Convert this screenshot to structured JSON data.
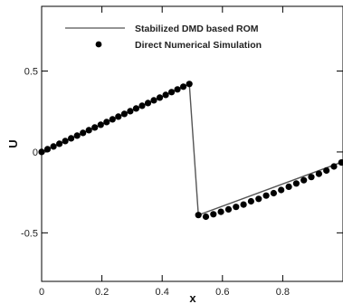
{
  "chart_data": {
    "type": "line",
    "xlabel": "x",
    "ylabel": "U",
    "xlim": [
      0,
      1.0
    ],
    "ylim": [
      -0.8,
      0.9
    ],
    "xticks": [
      0,
      0.2,
      0.4,
      0.6,
      0.8
    ],
    "xtick_labels": [
      "0",
      "0.2",
      "0.4",
      "0.6",
      "0.8"
    ],
    "yticks": [
      -0.5,
      0,
      0.5
    ],
    "ytick_labels": [
      "-0.5",
      "0",
      "0.5"
    ],
    "grid": false,
    "legend_position": "top-right",
    "series": [
      {
        "name": "Stabilized DMD based ROM",
        "style": "line",
        "color": "#555555",
        "x": [
          0.0,
          0.49,
          0.52,
          1.0
        ],
        "y": [
          0.0,
          0.42,
          -0.39,
          -0.06
        ]
      },
      {
        "name": "Direct Numerical Simulation",
        "style": "markers",
        "color": "#000000",
        "x": [
          0.0,
          0.0196,
          0.0392,
          0.0588,
          0.0784,
          0.098,
          0.1176,
          0.1372,
          0.1568,
          0.1764,
          0.196,
          0.2156,
          0.2352,
          0.2548,
          0.2744,
          0.294,
          0.3136,
          0.3332,
          0.3528,
          0.3724,
          0.392,
          0.4116,
          0.4312,
          0.4508,
          0.4704,
          0.49,
          0.52,
          0.545,
          0.57,
          0.595,
          0.62,
          0.645,
          0.67,
          0.695,
          0.72,
          0.745,
          0.77,
          0.795,
          0.82,
          0.845,
          0.87,
          0.895,
          0.92,
          0.945,
          0.97,
          0.995
        ],
        "y": [
          0.0,
          0.0168,
          0.0336,
          0.0504,
          0.0672,
          0.084,
          0.1008,
          0.1176,
          0.1344,
          0.1512,
          0.168,
          0.1848,
          0.2016,
          0.2184,
          0.2352,
          0.252,
          0.2688,
          0.2856,
          0.3024,
          0.3192,
          0.336,
          0.3528,
          0.3696,
          0.3864,
          0.4032,
          0.42,
          -0.39,
          -0.4,
          -0.385,
          -0.37,
          -0.355,
          -0.34,
          -0.325,
          -0.305,
          -0.29,
          -0.27,
          -0.255,
          -0.235,
          -0.215,
          -0.195,
          -0.175,
          -0.155,
          -0.135,
          -0.115,
          -0.09,
          -0.065
        ]
      }
    ]
  }
}
